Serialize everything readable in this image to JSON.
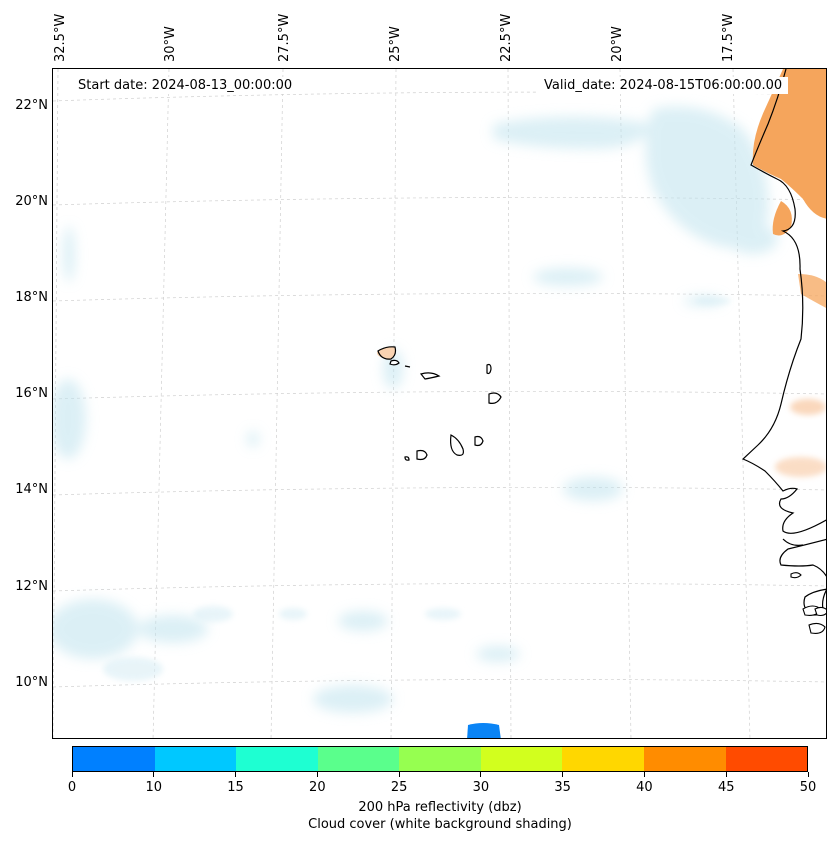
{
  "map": {
    "start_date": "Start date: 2024-08-13_00:00:00",
    "valid_date": "Valid_date: 2024-08-15T06:00:00.00",
    "lon_labels": [
      "32.5°W",
      "30°W",
      "27.5°W",
      "25°W",
      "22.5°W",
      "20°W",
      "17.5°W"
    ],
    "lat_labels": [
      "22°N",
      "20°N",
      "18°N",
      "16°N",
      "14°N",
      "12°N",
      "10°N"
    ],
    "gridlines": true,
    "region": "Cape Verde / West Africa coast"
  },
  "colorbar": {
    "ticks": [
      "0",
      "10",
      "15",
      "20",
      "25",
      "30",
      "35",
      "40",
      "45",
      "50"
    ],
    "colors": [
      "#0080ff",
      "#00c8ff",
      "#1effd2",
      "#5aff8c",
      "#96ff50",
      "#d2ff1e",
      "#ffd700",
      "#ff8c00",
      "#ff4b00"
    ],
    "label_line1": "200 hPa reflectivity (dbz)",
    "label_line2": "Cloud cover (white background shading)"
  }
}
